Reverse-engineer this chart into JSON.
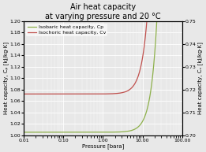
{
  "title_line1": "Air heat capacity",
  "title_line2": "at varying pressure and 20 °C",
  "xlabel": "Pressure [bara]",
  "ylabel_left": "Heat capacity, Cₚ [kJ/kg·K]",
  "ylabel_right": "Heat capacity, Cᵥ [kJ/kg·K]",
  "legend_cp": "Isobaric heat capacity, Cp",
  "legend_cv": "Isochoric heat capacity, Cv",
  "color_cp": "#8db04a",
  "color_cv": "#c0504d",
  "ylim_left": [
    1.0,
    1.2
  ],
  "ylim_right": [
    0.7,
    0.75
  ],
  "bg_color": "#e8e8e8",
  "grid_color": "#ffffff",
  "title_fontsize": 7,
  "label_fontsize": 5.0,
  "tick_fontsize": 4.5,
  "legend_fontsize": 4.5,
  "cp0": 1.005,
  "cv0": 0.718
}
